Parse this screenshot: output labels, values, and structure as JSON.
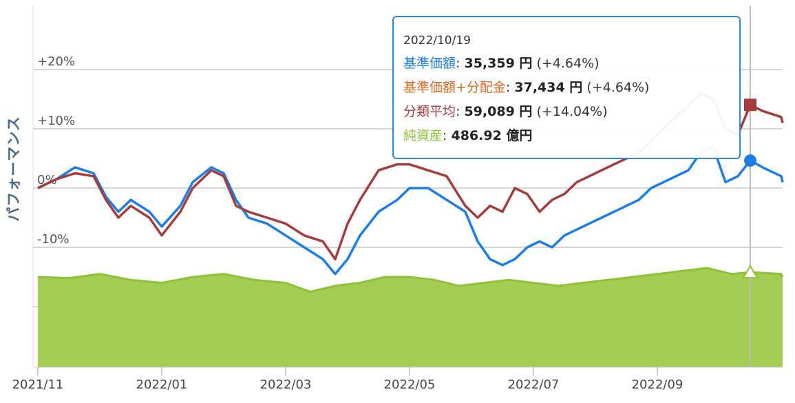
{
  "colors": {
    "nav": "#1a7ee6",
    "nav_with_dividend": "#e0671f",
    "category_avg": "#a63b3b",
    "net_assets": "#8cc234",
    "net_assets_fill": "#a3cc52",
    "grid": "#c8c8c8"
  },
  "y_axis_label": "パフォーマンス",
  "tooltip": {
    "date": "2022/10/19",
    "rows": [
      {
        "label": "基準価額",
        "sep": ": ",
        "value": "35,359 円",
        "change": " (+4.64%)",
        "color": "#1a7ee6"
      },
      {
        "label": "基準価額+分配金",
        "sep": ": ",
        "value": "37,434 円",
        "change": " (+4.64%)",
        "color": "#e0671f"
      },
      {
        "label": "分類平均",
        "sep": ": ",
        "value": "59,089 円",
        "change": " (+14.04%)",
        "color": "#a63b3b"
      },
      {
        "label": "純資産",
        "sep": ": ",
        "value": "486.92 億円",
        "change": "",
        "color": "#8cc234"
      }
    ]
  },
  "chart_data": {
    "type": "line",
    "title": "",
    "xlabel": "",
    "ylabel": "パフォーマンス",
    "x_range": [
      0,
      12.2
    ],
    "ylim": [
      -30,
      30
    ],
    "y_tick_values": [
      20,
      10,
      0,
      -10
    ],
    "y_tick_labels": [
      "+20%",
      "+10%",
      "0%",
      "-10%"
    ],
    "x_tick_values": [
      0,
      2,
      4,
      6,
      8,
      10
    ],
    "x_tick_labels": [
      "2021/11",
      "2022/01",
      "2022/03",
      "2022/05",
      "2022/07",
      "2022/09"
    ],
    "grid": true,
    "crosshair_x": 11.5,
    "series": [
      {
        "name": "基準価額",
        "style": "line",
        "color": "#1a7ee6",
        "points": [
          [
            0,
            0
          ],
          [
            0.3,
            1.5
          ],
          [
            0.6,
            3.5
          ],
          [
            0.9,
            2.5
          ],
          [
            1.1,
            -1.5
          ],
          [
            1.3,
            -4
          ],
          [
            1.5,
            -2
          ],
          [
            1.8,
            -4
          ],
          [
            2.0,
            -6.5
          ],
          [
            2.3,
            -3
          ],
          [
            2.5,
            1
          ],
          [
            2.8,
            3.5
          ],
          [
            3.0,
            2.5
          ],
          [
            3.2,
            -2
          ],
          [
            3.4,
            -5
          ],
          [
            3.7,
            -6
          ],
          [
            4.0,
            -8
          ],
          [
            4.3,
            -10
          ],
          [
            4.6,
            -12
          ],
          [
            4.8,
            -14.5
          ],
          [
            5.0,
            -12
          ],
          [
            5.2,
            -8
          ],
          [
            5.5,
            -4
          ],
          [
            5.8,
            -2
          ],
          [
            6.0,
            0
          ],
          [
            6.3,
            0
          ],
          [
            6.6,
            -2
          ],
          [
            6.9,
            -4
          ],
          [
            7.1,
            -9
          ],
          [
            7.3,
            -12
          ],
          [
            7.5,
            -13
          ],
          [
            7.7,
            -12
          ],
          [
            7.9,
            -10
          ],
          [
            8.1,
            -9
          ],
          [
            8.3,
            -10
          ],
          [
            8.5,
            -8
          ],
          [
            8.7,
            -7
          ],
          [
            8.9,
            -6
          ],
          [
            9.1,
            -5
          ],
          [
            9.3,
            -4
          ],
          [
            9.5,
            -3
          ],
          [
            9.7,
            -2
          ],
          [
            9.9,
            0
          ],
          [
            10.1,
            1
          ],
          [
            10.3,
            2
          ],
          [
            10.5,
            3
          ],
          [
            10.7,
            6
          ],
          [
            10.9,
            7
          ],
          [
            11.1,
            1
          ],
          [
            11.3,
            2
          ],
          [
            11.5,
            4.64
          ],
          [
            11.7,
            3.5
          ],
          [
            12.0,
            2
          ],
          [
            12.2,
            1
          ]
        ],
        "last_marker": {
          "x": 11.5,
          "y": 4.64
        }
      },
      {
        "name": "分類平均",
        "style": "line",
        "color": "#a63b3b",
        "points": [
          [
            0,
            0
          ],
          [
            0.3,
            1.5
          ],
          [
            0.6,
            2.5
          ],
          [
            0.9,
            2
          ],
          [
            1.1,
            -2
          ],
          [
            1.3,
            -5
          ],
          [
            1.5,
            -3
          ],
          [
            1.8,
            -5
          ],
          [
            2.0,
            -8
          ],
          [
            2.3,
            -4
          ],
          [
            2.5,
            0
          ],
          [
            2.8,
            3
          ],
          [
            3.0,
            2
          ],
          [
            3.2,
            -3
          ],
          [
            3.4,
            -4
          ],
          [
            3.7,
            -5
          ],
          [
            4.0,
            -6
          ],
          [
            4.3,
            -8
          ],
          [
            4.6,
            -9
          ],
          [
            4.8,
            -12
          ],
          [
            5.0,
            -6
          ],
          [
            5.2,
            -2
          ],
          [
            5.5,
            3
          ],
          [
            5.8,
            4
          ],
          [
            6.0,
            4
          ],
          [
            6.3,
            3
          ],
          [
            6.6,
            2
          ],
          [
            6.9,
            -3
          ],
          [
            7.1,
            -5
          ],
          [
            7.3,
            -3
          ],
          [
            7.5,
            -4
          ],
          [
            7.7,
            0
          ],
          [
            7.9,
            -1
          ],
          [
            8.1,
            -4
          ],
          [
            8.3,
            -2
          ],
          [
            8.5,
            -1
          ],
          [
            8.7,
            1
          ],
          [
            8.9,
            2
          ],
          [
            9.1,
            3
          ],
          [
            9.3,
            4
          ],
          [
            9.5,
            5
          ],
          [
            9.7,
            6
          ],
          [
            9.9,
            8
          ],
          [
            10.1,
            10
          ],
          [
            10.3,
            12
          ],
          [
            10.5,
            14
          ],
          [
            10.7,
            16
          ],
          [
            10.9,
            15
          ],
          [
            11.1,
            10
          ],
          [
            11.3,
            9
          ],
          [
            11.5,
            14.04
          ],
          [
            11.7,
            13
          ],
          [
            12.0,
            12
          ],
          [
            12.2,
            11
          ]
        ],
        "last_marker": {
          "x": 11.5,
          "y": 14.04
        }
      },
      {
        "name": "純資産",
        "style": "area",
        "color": "#8cc234",
        "fill": "#a3cc52",
        "points": [
          [
            0,
            -15
          ],
          [
            0.5,
            -15.2
          ],
          [
            1.0,
            -14.5
          ],
          [
            1.5,
            -15.5
          ],
          [
            2.0,
            -16
          ],
          [
            2.5,
            -15
          ],
          [
            3.0,
            -14.5
          ],
          [
            3.5,
            -15.5
          ],
          [
            4.0,
            -16
          ],
          [
            4.4,
            -17.5
          ],
          [
            4.8,
            -16.5
          ],
          [
            5.2,
            -16
          ],
          [
            5.6,
            -15
          ],
          [
            6.0,
            -15
          ],
          [
            6.4,
            -15.5
          ],
          [
            6.8,
            -16.5
          ],
          [
            7.2,
            -16
          ],
          [
            7.6,
            -15.5
          ],
          [
            8.0,
            -16
          ],
          [
            8.4,
            -16.5
          ],
          [
            8.8,
            -16
          ],
          [
            9.2,
            -15.5
          ],
          [
            9.6,
            -15
          ],
          [
            10.0,
            -14.5
          ],
          [
            10.4,
            -14
          ],
          [
            10.8,
            -13.5
          ],
          [
            11.2,
            -14.5
          ],
          [
            11.5,
            -14.2
          ],
          [
            12.0,
            -14.5
          ],
          [
            12.2,
            -15
          ]
        ],
        "last_marker": {
          "x": 11.5,
          "y": -14.2
        }
      }
    ]
  }
}
